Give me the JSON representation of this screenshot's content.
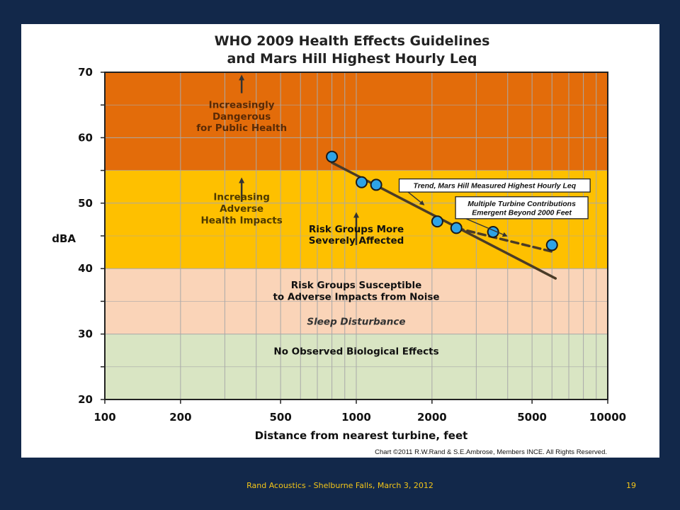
{
  "footer": {
    "text": "Rand Acoustics - Shelburne Falls, March 3, 2012",
    "slide_number": "19"
  },
  "chart_data": {
    "type": "scatter",
    "title": [
      "WHO 2009 Health Effects Guidelines",
      "and Mars Hill Highest Hourly Leq"
    ],
    "xlabel": "Distance from nearest turbine, feet",
    "ylabel": "dBA",
    "x_scale": "log",
    "xlim": [
      100,
      10000
    ],
    "ylim": [
      20,
      70
    ],
    "x_ticks": [
      100,
      200,
      500,
      1000,
      2000,
      5000,
      10000
    ],
    "x_tick_labels": [
      "100",
      "200",
      "500",
      "1000",
      "2000",
      "5000",
      "10000"
    ],
    "y_ticks": [
      20,
      30,
      40,
      50,
      60,
      70
    ],
    "y_tick_labels": [
      "20",
      "30",
      "40",
      "50",
      "60",
      "70"
    ],
    "grid": true,
    "bands": [
      {
        "from": 20,
        "to": 30,
        "color": "#d9e5c3",
        "label": [
          "No Observed Biological Effects"
        ],
        "label_color": "#111111",
        "label_x": 1000,
        "label_y": 27.4
      },
      {
        "from": 30,
        "to": 40,
        "color": "#fad4b8",
        "label": [
          "Risk Groups Susceptible",
          "to Adverse Impacts from Noise"
        ],
        "label_color": "#111111",
        "label_x": 1000,
        "label_y": 36.6
      },
      {
        "from": 40,
        "to": 55,
        "color": "#fec000",
        "label": [
          "Increasing",
          "Adverse",
          "Health Impacts"
        ],
        "label_color": "#4f3a00",
        "label_x": 350,
        "label_y": 49.2
      },
      {
        "from": 55,
        "to": 70,
        "color": "#e36c0a",
        "label": [
          "Increasingly",
          "Dangerous",
          "for Public Health"
        ],
        "label_color": "#5a2a05",
        "label_x": 350,
        "label_y": 63.3
      }
    ],
    "extra_labels": [
      {
        "lines": [
          "Sleep Disturbance"
        ],
        "x": 1000,
        "y": 32.1,
        "italic": true,
        "size": 18,
        "color": "#333333"
      },
      {
        "lines": [
          "Risk Groups More",
          "Severely Affected"
        ],
        "x": 1000,
        "y": 45.2,
        "italic": false,
        "size": 13.5,
        "color": "#111111"
      }
    ],
    "arrows": [
      {
        "x": 350,
        "from_y": 66.8,
        "to_y": 69.2
      },
      {
        "x": 350,
        "from_y": 50.2,
        "to_y": 53.5
      },
      {
        "x": 1000,
        "from_y": 43.6,
        "to_y": 48.2
      }
    ],
    "series": [
      {
        "name": "Mars Hill Highest Hourly Leq",
        "x": [
          800,
          1050,
          1200,
          2100,
          2500,
          3500,
          6000
        ],
        "y": [
          57.1,
          53.2,
          52.8,
          47.2,
          46.2,
          45.6,
          43.6
        ],
        "color": "#2ea3e6"
      }
    ],
    "trend_lines": [
      {
        "name": "Trend, Mars Hill Measured Highest Hourly Leq",
        "x": [
          800,
          6200
        ],
        "y": [
          56.2,
          38.5
        ],
        "dashed": false,
        "color": "#4a3b26"
      },
      {
        "name": "Multiple Turbine Contributions Emergent Beyond 2000 Feet",
        "x": [
          2500,
          6000
        ],
        "y": [
          46.2,
          42.6
        ],
        "dashed": true,
        "color": "#4a3b26"
      }
    ],
    "callouts": [
      {
        "lines": [
          "Trend, Mars Hill Measured Highest Hourly Leq"
        ],
        "box_x": 3550,
        "box_y": 52.7,
        "arrow_to_x": 1850,
        "arrow_to_y": 49.8
      },
      {
        "lines": [
          "Multiple Turbine Contributions",
          "Emergent Beyond 2000 Feet"
        ],
        "box_x": 4550,
        "box_y": 49.3,
        "arrow_to_x": 3950,
        "arrow_to_y": 45.0
      }
    ],
    "credit": "Chart ©2011 R.W.Rand & S.E.Ambrose, Members INCE. All Rights Reserved."
  }
}
